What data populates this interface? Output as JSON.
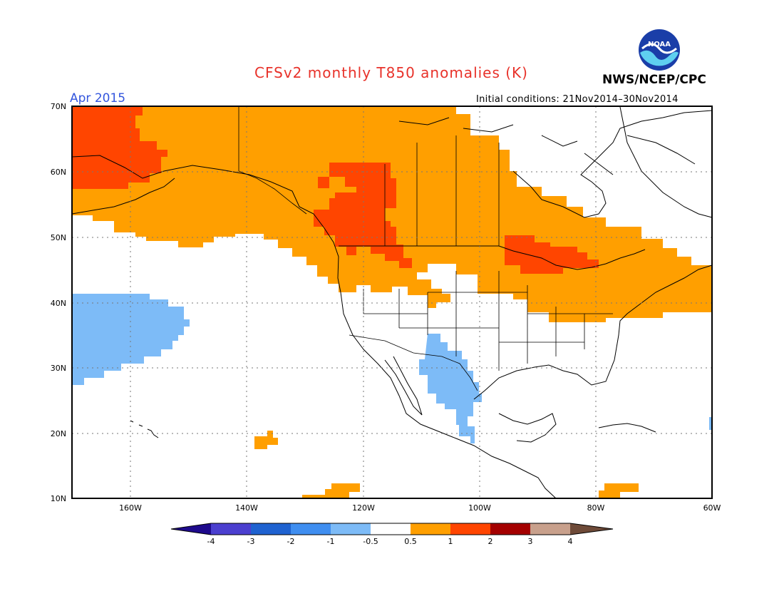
{
  "title": "CFSv2 monthly T850 anomalies (K)",
  "agency": "NWS/NCEP/CPC",
  "logo_text": "NOAA",
  "month": "Apr 2015",
  "initial_conditions": "Initial conditions: 21Nov2014–30Nov2014",
  "map": {
    "lon_range": [
      -170,
      -60
    ],
    "lat_range": [
      10,
      70
    ],
    "lat_labels": [
      "10N",
      "20N",
      "30N",
      "40N",
      "50N",
      "60N",
      "70N"
    ],
    "lon_labels": [
      "160W",
      "140W",
      "120W",
      "100W",
      "80W",
      "60W"
    ],
    "grid": true
  },
  "colorbar": {
    "levels": [
      "-4",
      "-3",
      "-2",
      "-1",
      "-0.5",
      "0.5",
      "1",
      "2",
      "3",
      "4"
    ],
    "colors": [
      "#1e0a8c",
      "#4b3fcf",
      "#1f62d0",
      "#3f8ef0",
      "#7dbbf7",
      "#ffffff",
      "#ff9f00",
      "#ff4500",
      "#a40000",
      "#c8a08c",
      "#6e4a38"
    ]
  },
  "colors": {
    "warm_1": "#ff9f00",
    "warm_2": "#ff4500",
    "cool_1": "#7dbbf7",
    "title": "#e8322a",
    "month": "#3355dd"
  }
}
